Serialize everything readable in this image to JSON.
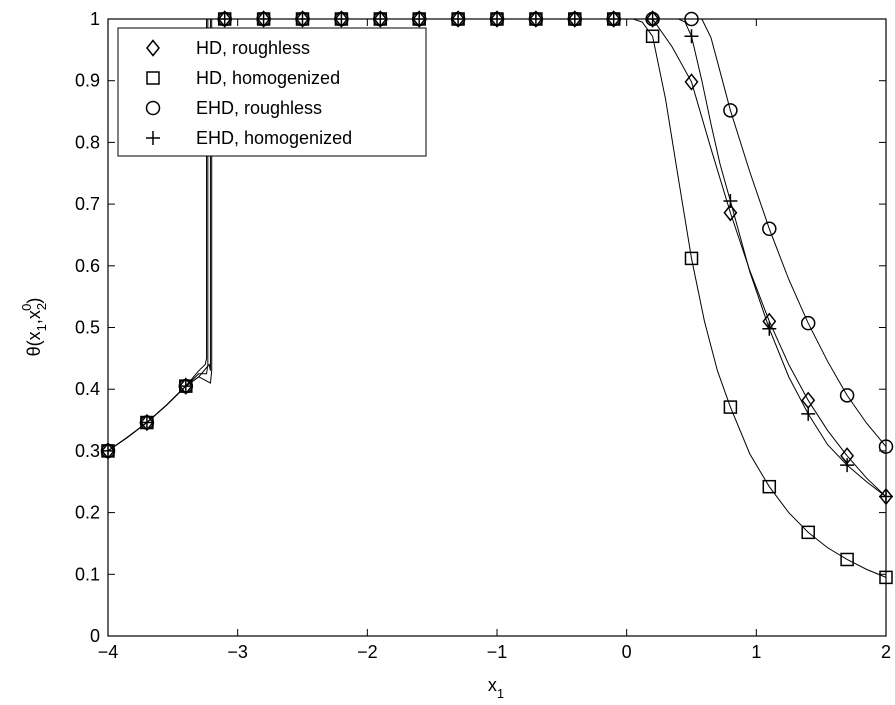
{
  "chart_data": {
    "type": "line",
    "title": "",
    "xlabel": "x",
    "xlabel_sub": "1",
    "ylabel_parts": {
      "a": "θ(x",
      "b": "1",
      "c": ",x",
      "d": "2",
      "e": "0",
      "f": ")"
    },
    "xlim": [
      -4,
      2
    ],
    "ylim": [
      0,
      1
    ],
    "xticks": [
      -4,
      -3,
      -2,
      -1,
      0,
      1,
      2
    ],
    "xtick_labels": [
      "−4",
      "−3",
      "−2",
      "−1",
      "0",
      "1",
      "2"
    ],
    "yticks": [
      0,
      0.1,
      0.2,
      0.3,
      0.4,
      0.5,
      0.6,
      0.7,
      0.8,
      0.9,
      1
    ],
    "ytick_labels": [
      "0",
      "0.1",
      "0.2",
      "0.3",
      "0.4",
      "0.5",
      "0.6",
      "0.7",
      "0.8",
      "0.9",
      "1"
    ],
    "grid": false,
    "legend_position": "top-left",
    "series": [
      {
        "name": "HD, roughless",
        "marker": "diamond",
        "x": [
          -4.0,
          -3.7,
          -3.4,
          -3.1,
          -2.8,
          -2.5,
          -2.2,
          -1.9,
          -1.6,
          -1.3,
          -1.0,
          -0.7,
          -0.4,
          -0.1,
          0.2,
          0.5,
          0.8,
          1.1,
          1.4,
          1.7,
          2.0
        ],
        "y": [
          0.3,
          0.346,
          0.405,
          1,
          1,
          1,
          1,
          1,
          1,
          1,
          1,
          1,
          1,
          1,
          1,
          0.898,
          0.686,
          0.51,
          0.382,
          0.292,
          0.226
        ],
        "curve_x": [
          -4.0,
          -3.85,
          -3.7,
          -3.55,
          -3.4,
          -3.3,
          -3.24,
          -3.23,
          -3.23,
          -2.0,
          0.2,
          0.35,
          0.5,
          0.65,
          0.8,
          0.95,
          1.1,
          1.25,
          1.4,
          1.55,
          1.7,
          1.85,
          2.0
        ],
        "curve_y": [
          0.3,
          0.322,
          0.346,
          0.374,
          0.405,
          0.425,
          0.425,
          0.44,
          1,
          1,
          1,
          0.955,
          0.898,
          0.79,
          0.686,
          0.592,
          0.51,
          0.44,
          0.382,
          0.333,
          0.292,
          0.256,
          0.226
        ]
      },
      {
        "name": "HD, homogenized",
        "marker": "square",
        "x": [
          -4.0,
          -3.7,
          -3.4,
          -3.1,
          -2.8,
          -2.5,
          -2.2,
          -1.9,
          -1.6,
          -1.3,
          -1.0,
          -0.7,
          -0.4,
          -0.1,
          0.2,
          0.5,
          0.8,
          1.1,
          1.4,
          1.7,
          2.0
        ],
        "y": [
          0.3,
          0.346,
          0.405,
          1,
          1,
          1,
          1,
          1,
          1,
          1,
          1,
          1,
          1,
          1,
          0.972,
          0.612,
          0.371,
          0.242,
          0.168,
          0.124,
          0.095
        ],
        "curve_x": [
          -4.0,
          -3.85,
          -3.7,
          -3.55,
          -3.4,
          -3.3,
          -3.21,
          -3.2,
          -3.2,
          -2.0,
          0.05,
          0.12,
          0.2,
          0.3,
          0.4,
          0.5,
          0.6,
          0.7,
          0.8,
          0.95,
          1.1,
          1.25,
          1.4,
          1.55,
          1.7,
          1.85,
          2.0
        ],
        "curve_y": [
          0.3,
          0.322,
          0.346,
          0.374,
          0.405,
          0.42,
          0.41,
          0.43,
          1,
          1,
          1,
          0.995,
          0.972,
          0.87,
          0.74,
          0.612,
          0.51,
          0.43,
          0.371,
          0.295,
          0.242,
          0.2,
          0.168,
          0.143,
          0.124,
          0.108,
          0.095
        ]
      },
      {
        "name": "EHD, roughless",
        "marker": "circle",
        "x": [
          -4.0,
          -3.7,
          -3.4,
          -3.1,
          -2.8,
          -2.5,
          -2.2,
          -1.9,
          -1.6,
          -1.3,
          -1.0,
          -0.7,
          -0.4,
          -0.1,
          0.2,
          0.5,
          0.8,
          1.1,
          1.4,
          1.7,
          2.0
        ],
        "y": [
          0.3,
          0.346,
          0.405,
          1,
          1,
          1,
          1,
          1,
          1,
          1,
          1,
          1,
          1,
          1,
          1,
          1,
          0.852,
          0.66,
          0.507,
          0.39,
          0.307
        ],
        "curve_x": [
          -4.0,
          -3.85,
          -3.7,
          -3.55,
          -3.4,
          -3.3,
          -3.25,
          -3.24,
          -3.24,
          -2.0,
          0.5,
          0.58,
          0.65,
          0.72,
          0.8,
          0.95,
          1.1,
          1.25,
          1.4,
          1.55,
          1.7,
          1.85,
          2.0
        ],
        "curve_y": [
          0.3,
          0.322,
          0.346,
          0.374,
          0.405,
          0.43,
          0.44,
          0.45,
          1,
          1,
          1,
          1,
          0.97,
          0.915,
          0.852,
          0.752,
          0.66,
          0.578,
          0.507,
          0.445,
          0.39,
          0.345,
          0.307
        ]
      },
      {
        "name": "EHD, homogenized",
        "marker": "plus",
        "x": [
          -4.0,
          -3.7,
          -3.4,
          -3.1,
          -2.8,
          -2.5,
          -2.2,
          -1.9,
          -1.6,
          -1.3,
          -1.0,
          -0.7,
          -0.4,
          -0.1,
          0.2,
          0.5,
          0.8,
          1.1,
          1.4,
          1.7,
          2.0
        ],
        "y": [
          0.3,
          0.346,
          0.405,
          1,
          1,
          1,
          1,
          1,
          1,
          1,
          1,
          1,
          1,
          1,
          1,
          0.972,
          0.705,
          0.498,
          0.36,
          0.277,
          0.226
        ],
        "curve_x": [
          -4.0,
          -3.85,
          -3.7,
          -3.55,
          -3.4,
          -3.3,
          -3.22,
          -3.21,
          -3.21,
          -2.0,
          0.4,
          0.45,
          0.5,
          0.58,
          0.65,
          0.72,
          0.8,
          0.95,
          1.1,
          1.25,
          1.4,
          1.55,
          1.7,
          1.85,
          2.0
        ],
        "curve_y": [
          0.3,
          0.322,
          0.346,
          0.374,
          0.405,
          0.42,
          0.44,
          0.43,
          1,
          1,
          1,
          0.995,
          0.972,
          0.9,
          0.83,
          0.765,
          0.705,
          0.59,
          0.498,
          0.42,
          0.36,
          0.31,
          0.277,
          0.25,
          0.226
        ]
      }
    ]
  }
}
